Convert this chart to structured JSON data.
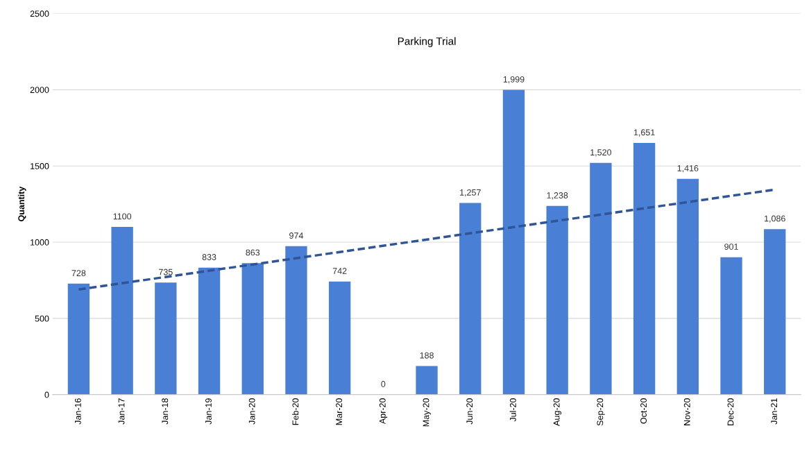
{
  "chart_data": {
    "type": "bar",
    "title": "Parking Trial",
    "ylabel": "Quantity",
    "categories": [
      "Jan-16",
      "Jan-17",
      "Jan-18",
      "Jan-19",
      "Jan-20",
      "Feb-20",
      "Mar-20",
      "Apr-20",
      "May-20",
      "Jun-20",
      "Jul-20",
      "Aug-20",
      "Sep-20",
      "Oct-20",
      "Nov-20",
      "Dec-20",
      "Jan-21"
    ],
    "series": [
      {
        "color": "#4a7fd6",
        "values": [
          728,
          1100,
          735,
          833,
          863,
          974,
          742,
          0,
          188,
          1257,
          1999,
          1238,
          1520,
          1651,
          1416,
          901,
          1086
        ],
        "value_labels": [
          "728",
          "1100",
          "735",
          "833",
          "863",
          "974",
          "742",
          "0",
          "188",
          "1,257",
          "1,999",
          "1,238",
          "1,520",
          "1,651",
          "1,416",
          "901",
          "1,086"
        ]
      },
      {
        "type": "line",
        "color": "#2f5597",
        "line_style": "dashed",
        "x": [
          "Jan-16",
          "Jan-21"
        ],
        "values": [
          690,
          1345
        ]
      }
    ],
    "ylim": [
      0,
      2500
    ],
    "yticks": [
      0,
      500,
      1000,
      1500,
      2000,
      2500
    ],
    "grid": "y"
  }
}
